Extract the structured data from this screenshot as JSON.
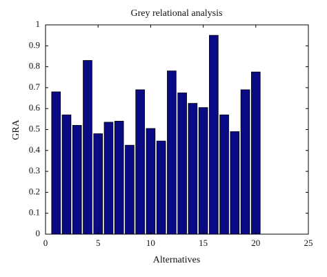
{
  "chart_data": {
    "type": "bar",
    "title": "Grey relational analysis",
    "x_label": "Alternatives",
    "y_label": "GRA",
    "x": [
      1,
      2,
      3,
      4,
      5,
      6,
      7,
      8,
      9,
      10,
      11,
      12,
      13,
      14,
      15,
      16,
      17,
      18,
      19,
      20
    ],
    "values": [
      0.68,
      0.57,
      0.52,
      0.83,
      0.48,
      0.535,
      0.54,
      0.425,
      0.69,
      0.505,
      0.445,
      0.78,
      0.675,
      0.625,
      0.605,
      0.95,
      0.57,
      0.49,
      0.69,
      0.775
    ],
    "color": "#0a0a84",
    "xlim": [
      0,
      25
    ],
    "xticks": [
      0,
      5,
      10,
      15,
      20,
      25
    ],
    "ylim": [
      0,
      1
    ],
    "yticks": [
      0,
      0.1,
      0.2,
      0.3,
      0.4,
      0.5,
      0.6,
      0.7,
      0.8,
      0.9,
      1
    ],
    "grid": false
  }
}
